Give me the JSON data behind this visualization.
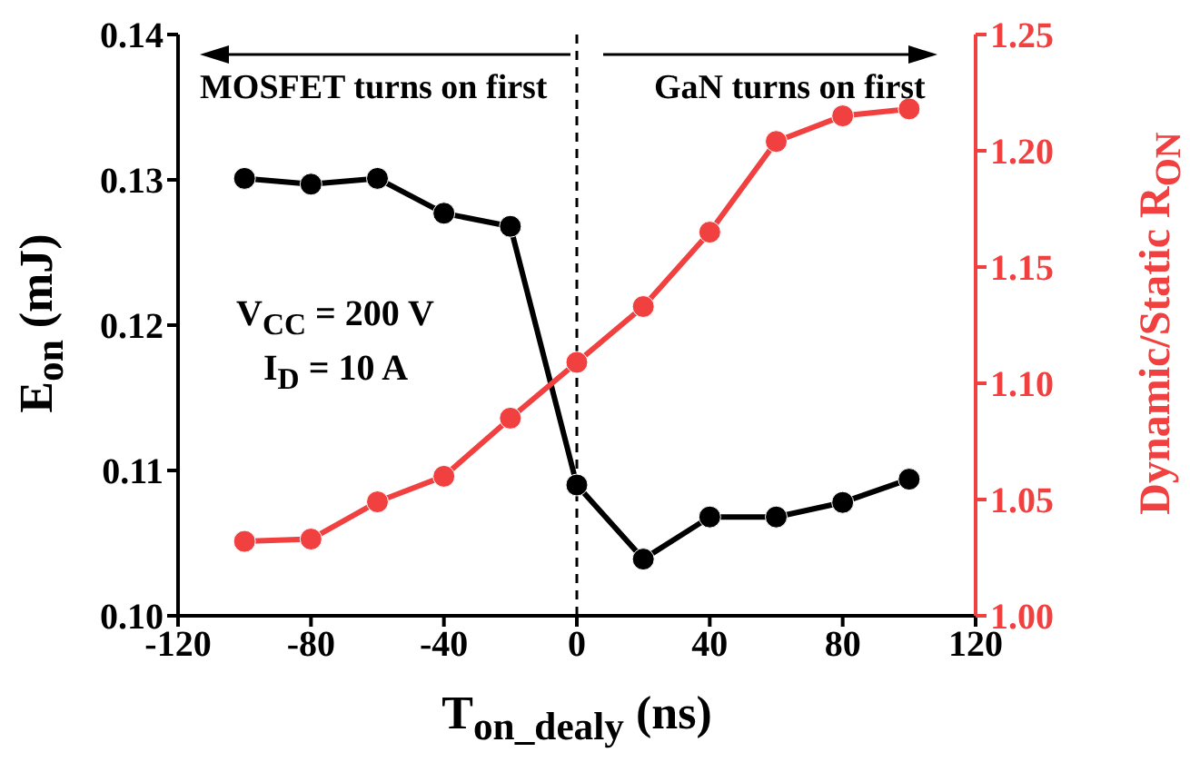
{
  "chart_data": {
    "type": "line",
    "xlabel": "T$_{on_dealy}$ (ns)",
    "ylabel": "E$_{on}$ (mJ)",
    "y2label": "Dynamic/Static R$_{ON}$",
    "x": [
      -100,
      -80,
      -60,
      -40,
      -20,
      0,
      20,
      40,
      60,
      80,
      100
    ],
    "series": [
      {
        "color": "#000000",
        "marker": "circle",
        "values": [
          0.1301,
          0.1297,
          0.1301,
          0.1277,
          0.1268,
          0.109,
          0.1039,
          0.1068,
          0.1068,
          0.1078,
          0.1094
        ]
      },
      {
        "color": "#f04040",
        "marker": "circle",
        "axis": "y2",
        "values": [
          1.032,
          1.033,
          1.049,
          1.06,
          1.085,
          1.109,
          1.133,
          1.165,
          1.204,
          1.215,
          1.218
        ]
      }
    ],
    "xlim": [
      -120,
      120
    ],
    "xticks": [
      -120,
      -80,
      -40,
      0,
      40,
      80,
      120
    ],
    "ylim": [
      0.1,
      0.14
    ],
    "yticks": [
      {
        "value": 0.1,
        "label": "0.10"
      },
      {
        "value": 0.11,
        "label": "0.11"
      },
      {
        "value": 0.12,
        "label": "0.12"
      },
      {
        "value": 0.13,
        "label": "0.13"
      },
      {
        "value": 0.14,
        "label": "0.14"
      }
    ],
    "y2lim": [
      1.0,
      1.25
    ],
    "y2ticks": [
      {
        "value": 1.0,
        "label": "1.00"
      },
      {
        "value": 1.05,
        "label": "1.05"
      },
      {
        "value": 1.1,
        "label": "1.10"
      },
      {
        "value": 1.15,
        "label": "1.15"
      },
      {
        "value": 1.2,
        "label": "1.20"
      },
      {
        "value": 1.25,
        "label": "1.25"
      }
    ],
    "ref_lines": [
      {
        "axis": "x",
        "value": 0,
        "color": "#000000",
        "line_style": "dashed"
      }
    ],
    "annotations": [
      "MOSFET turns on first",
      "GaN turns on first",
      "V$_{CC}$ = 200 V",
      "I$_{D}$ = 10 A"
    ],
    "legend": false,
    "grid": false
  }
}
